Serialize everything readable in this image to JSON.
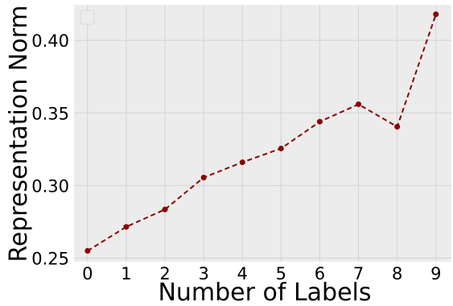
{
  "chart_data": {
    "type": "line",
    "xlabel": "Number of Labels",
    "ylabel": "Representation Norm",
    "x": [
      0,
      1,
      2,
      3,
      4,
      5,
      6,
      7,
      8,
      9
    ],
    "series": [
      {
        "values": [
          0.255,
          0.2715,
          0.2835,
          0.3055,
          0.316,
          0.3255,
          0.344,
          0.356,
          0.3405,
          0.418
        ],
        "color": "#8b0000",
        "line_style": "dashed",
        "marker": "circle"
      }
    ],
    "xlim": [
      -0.35,
      9.4
    ],
    "ylim": [
      0.2475,
      0.4245
    ],
    "xticks": [
      "0",
      "1",
      "2",
      "3",
      "4",
      "5",
      "6",
      "7",
      "8",
      "9"
    ],
    "yticks": [
      "0.25",
      "0.30",
      "0.35",
      "0.40"
    ],
    "grid": true,
    "legend": "top-left, empty",
    "background_color": "#ececec"
  }
}
